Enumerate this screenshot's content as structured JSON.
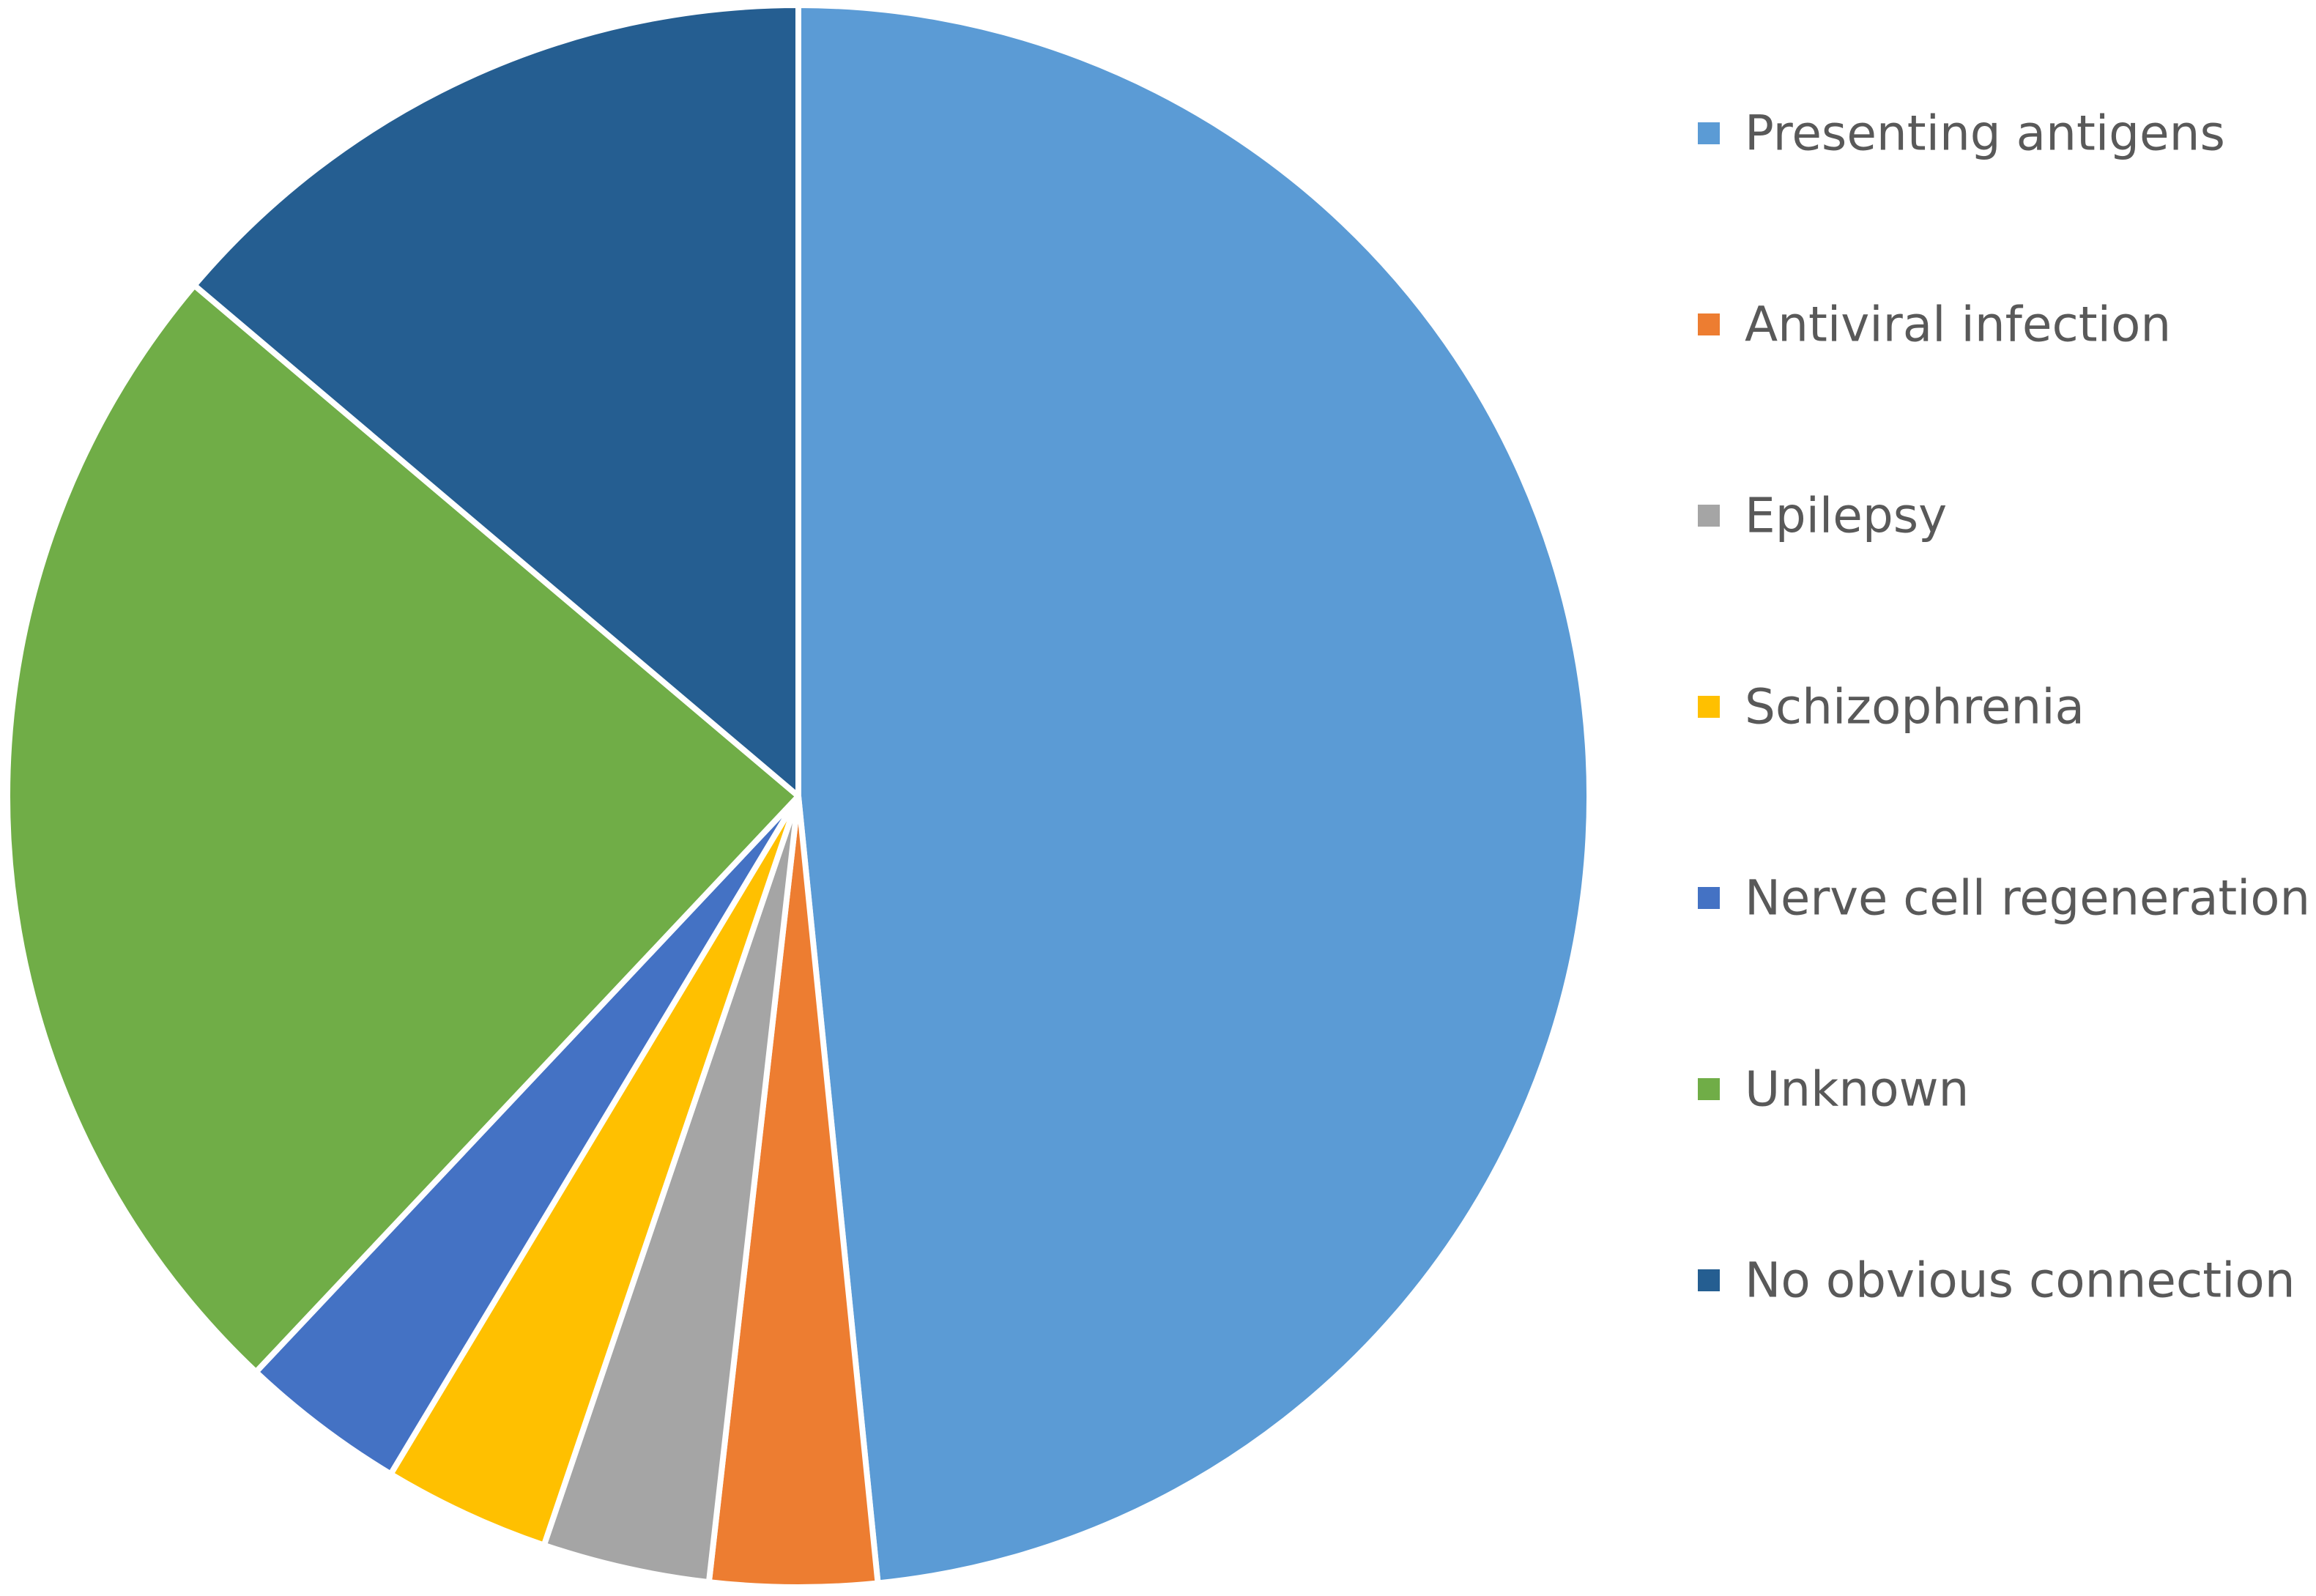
{
  "chart_data": {
    "type": "pie",
    "title": "",
    "legend_position": "right",
    "start_angle_deg": 0,
    "direction": "clockwise",
    "slices": [
      {
        "label": "Presenting antigens",
        "value": 48.3,
        "color": "#5B9BD5"
      },
      {
        "label": "Antiviral infection",
        "value": 3.4,
        "color": "#ED7D31"
      },
      {
        "label": "Epilepsy",
        "value": 3.4,
        "color": "#A5A5A5"
      },
      {
        "label": "Schizophrenia",
        "value": 3.4,
        "color": "#FFC000"
      },
      {
        "label": "Nerve cell regeneration",
        "value": 3.4,
        "color": "#4472C4"
      },
      {
        "label": "Unknown",
        "value": 24.1,
        "color": "#70AD47"
      },
      {
        "label": "No obvious connection",
        "value": 13.8,
        "color": "#255E91"
      }
    ]
  }
}
